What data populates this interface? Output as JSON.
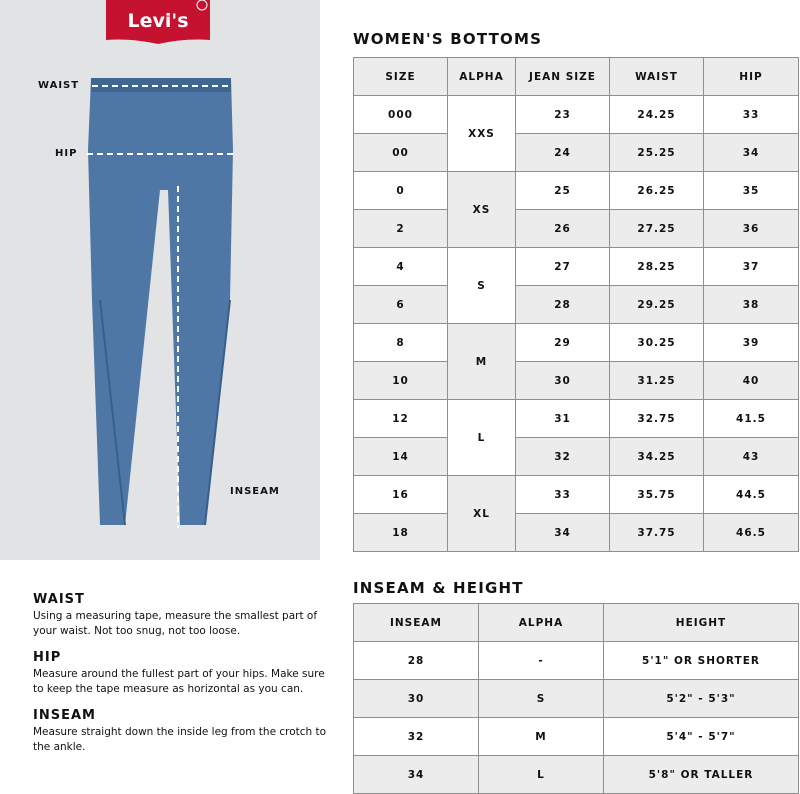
{
  "brand": {
    "logo_text": "Levi's",
    "color": "#c41230"
  },
  "diagram": {
    "waist_label": "WAIST",
    "hip_label": "HIP",
    "inseam_label": "INSEAM"
  },
  "womens": {
    "title": "WOMEN'S BOTTOMS",
    "headers": [
      "SIZE",
      "ALPHA",
      "JEAN SIZE",
      "WAIST",
      "HIP"
    ],
    "rows": [
      {
        "size": "000",
        "alpha": "XXS",
        "jean": "23",
        "waist": "24.25",
        "hip": "33"
      },
      {
        "size": "00",
        "jean": "24",
        "waist": "25.25",
        "hip": "34"
      },
      {
        "size": "0",
        "alpha": "XS",
        "jean": "25",
        "waist": "26.25",
        "hip": "35"
      },
      {
        "size": "2",
        "jean": "26",
        "waist": "27.25",
        "hip": "36"
      },
      {
        "size": "4",
        "alpha": "S",
        "jean": "27",
        "waist": "28.25",
        "hip": "37"
      },
      {
        "size": "6",
        "jean": "28",
        "waist": "29.25",
        "hip": "38"
      },
      {
        "size": "8",
        "alpha": "M",
        "jean": "29",
        "waist": "30.25",
        "hip": "39"
      },
      {
        "size": "10",
        "jean": "30",
        "waist": "31.25",
        "hip": "40"
      },
      {
        "size": "12",
        "alpha": "L",
        "jean": "31",
        "waist": "32.75",
        "hip": "41.5"
      },
      {
        "size": "14",
        "jean": "32",
        "waist": "34.25",
        "hip": "43"
      },
      {
        "size": "16",
        "alpha": "XL",
        "jean": "33",
        "waist": "35.75",
        "hip": "44.5"
      },
      {
        "size": "18",
        "jean": "34",
        "waist": "37.75",
        "hip": "46.5"
      }
    ]
  },
  "inseam": {
    "title": "INSEAM & HEIGHT",
    "headers": [
      "INSEAM",
      "ALPHA",
      "HEIGHT"
    ],
    "rows": [
      [
        "28",
        "-",
        "5'1\" OR SHORTER"
      ],
      [
        "30",
        "S",
        "5'2\" - 5'3\""
      ],
      [
        "32",
        "M",
        "5'4\" - 5'7\""
      ],
      [
        "34",
        "L",
        "5'8\" OR TALLER"
      ]
    ]
  },
  "guide": [
    {
      "title": "WAIST",
      "text": "Using a measuring tape, measure the smallest part of your waist. Not too snug, not too loose."
    },
    {
      "title": "HIP",
      "text": "Measure around the fullest part of your hips. Make sure to keep the tape measure as horizontal as you can."
    },
    {
      "title": "INSEAM",
      "text": "Measure straight down the inside leg from the crotch to the ankle."
    }
  ]
}
